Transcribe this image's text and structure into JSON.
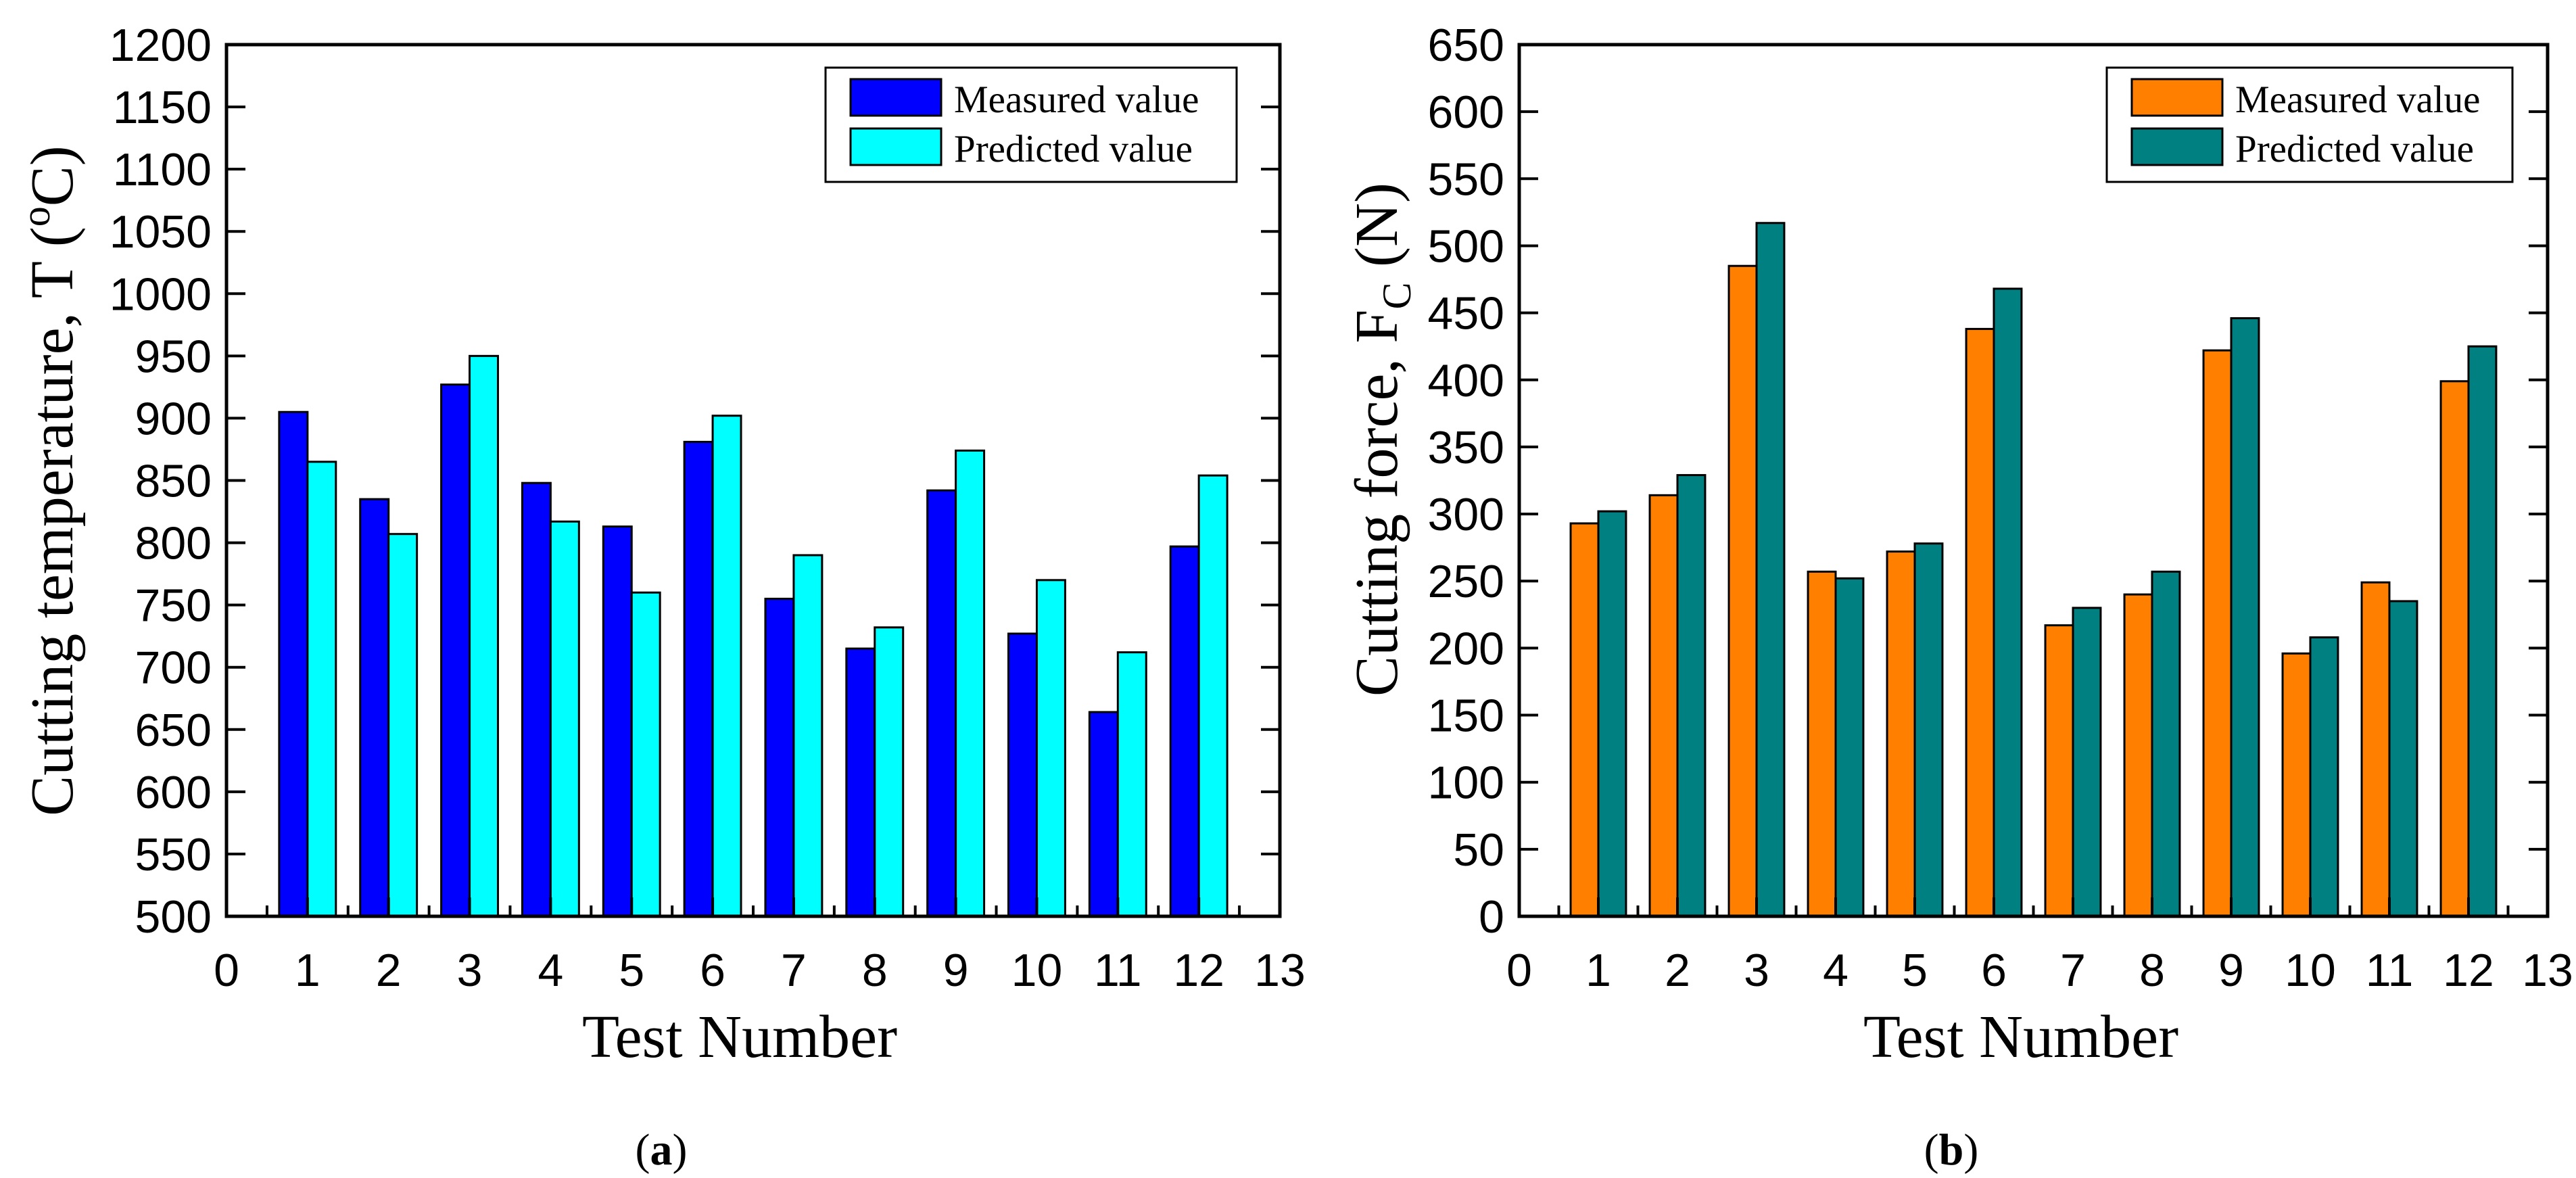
{
  "chart_data": [
    {
      "type": "bar",
      "caption": [
        {
          "text": "("
        },
        {
          "text": "a",
          "bold": true
        },
        {
          "text": ")"
        }
      ],
      "xlabel": "Test Number",
      "ylabel": [
        {
          "text": "Cutting temperature, T ("
        },
        {
          "text": "o",
          "sup": true
        },
        {
          "text": "C)"
        }
      ],
      "xlim": [
        0,
        13
      ],
      "ylim": [
        500,
        1200
      ],
      "xticks": [
        0,
        1,
        2,
        3,
        4,
        5,
        6,
        7,
        8,
        9,
        10,
        11,
        12,
        13
      ],
      "yticks": [
        500,
        550,
        600,
        650,
        700,
        750,
        800,
        850,
        900,
        950,
        1000,
        1050,
        1100,
        1150,
        1200
      ],
      "x": [
        1,
        2,
        3,
        4,
        5,
        6,
        7,
        8,
        9,
        10,
        11,
        12
      ],
      "series": [
        {
          "name": "Measured value",
          "color": "#0000ff",
          "values": [
            905,
            835,
            927,
            848,
            813,
            881,
            755,
            715,
            842,
            727,
            664,
            797
          ]
        },
        {
          "name": "Predicted value",
          "color": "#00ffff",
          "values": [
            865,
            807,
            950,
            817,
            760,
            902,
            790,
            732,
            874,
            770,
            712,
            854
          ]
        }
      ],
      "legend": "top-right",
      "grid": false
    },
    {
      "type": "bar",
      "caption": [
        {
          "text": "("
        },
        {
          "text": "b",
          "bold": true
        },
        {
          "text": ")"
        }
      ],
      "xlabel": "Test Number",
      "ylabel": [
        {
          "text": "Cutting force, F"
        },
        {
          "text": "C",
          "sub": true
        },
        {
          "text": " (N)"
        }
      ],
      "xlim": [
        0,
        13
      ],
      "ylim": [
        0,
        650
      ],
      "xticks": [
        0,
        1,
        2,
        3,
        4,
        5,
        6,
        7,
        8,
        9,
        10,
        11,
        12,
        13
      ],
      "yticks": [
        0,
        50,
        100,
        150,
        200,
        250,
        300,
        350,
        400,
        450,
        500,
        550,
        600,
        650
      ],
      "x": [
        1,
        2,
        3,
        4,
        5,
        6,
        7,
        8,
        9,
        10,
        11,
        12
      ],
      "series": [
        {
          "name": "Measured value",
          "color": "#ff8000",
          "values": [
            293,
            314,
            485,
            257,
            272,
            438,
            217,
            240,
            422,
            196,
            249,
            399
          ]
        },
        {
          "name": "Predicted value",
          "color": "#008080",
          "values": [
            302,
            329,
            517,
            252,
            278,
            468,
            230,
            257,
            446,
            208,
            235,
            425
          ]
        }
      ],
      "legend": "top-right",
      "grid": false
    }
  ]
}
